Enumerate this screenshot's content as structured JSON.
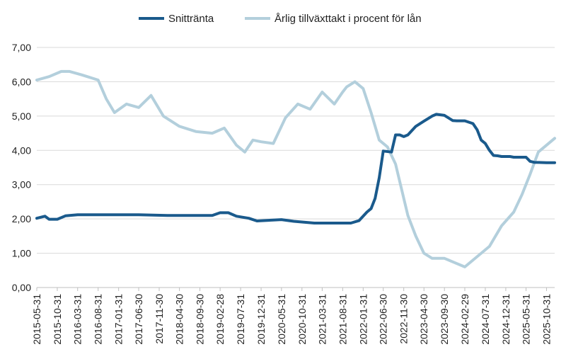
{
  "chart_data": {
    "type": "line",
    "title": "",
    "xlabel": "",
    "ylabel": "",
    "ylim": [
      0,
      7
    ],
    "y_ticks": [
      "0,00",
      "1,00",
      "2,00",
      "3,00",
      "4,00",
      "5,00",
      "6,00",
      "7,00"
    ],
    "y_tick_values": [
      0,
      1,
      2,
      3,
      4,
      5,
      6,
      7
    ],
    "x_range": [
      "2015-05-31",
      "2025-12-31"
    ],
    "x_ticks": [
      "2015-05-31",
      "2015-10-31",
      "2016-03-31",
      "2016-08-31",
      "2017-01-31",
      "2017-06-30",
      "2017-11-30",
      "2018-04-30",
      "2018-09-30",
      "2019-02-28",
      "2019-07-31",
      "2019-12-31",
      "2020-05-31",
      "2020-10-31",
      "2021-03-31",
      "2021-08-31",
      "2022-01-31",
      "2022-06-30",
      "2022-11-30",
      "2023-04-30",
      "2023-09-30",
      "2024-02-29",
      "2024-07-31",
      "2024-12-31",
      "2025-05-31",
      "2025-10-31"
    ],
    "grid": true,
    "legend_position": "top-center",
    "series": [
      {
        "name": "Snittränta",
        "color": "#1a5a8c",
        "x": [
          "2015-05-31",
          "2015-07-31",
          "2015-08-31",
          "2015-10-31",
          "2015-12-31",
          "2016-03-31",
          "2016-06-30",
          "2017-06-30",
          "2018-01-31",
          "2018-12-31",
          "2019-02-28",
          "2019-04-30",
          "2019-06-30",
          "2019-09-30",
          "2019-11-30",
          "2020-05-31",
          "2020-08-31",
          "2021-01-31",
          "2021-06-30",
          "2021-08-31",
          "2021-10-31",
          "2021-12-31",
          "2022-02-28",
          "2022-03-31",
          "2022-04-30",
          "2022-05-31",
          "2022-06-30",
          "2022-08-31",
          "2022-09-30",
          "2022-10-31",
          "2022-11-30",
          "2022-12-31",
          "2023-02-28",
          "2023-04-30",
          "2023-06-30",
          "2023-07-31",
          "2023-09-30",
          "2023-11-30",
          "2023-12-31",
          "2024-02-29",
          "2024-04-30",
          "2024-05-31",
          "2024-06-30",
          "2024-07-31",
          "2024-08-31",
          "2024-09-30",
          "2024-10-31",
          "2024-11-30",
          "2025-01-31",
          "2025-02-28",
          "2025-05-31",
          "2025-06-30",
          "2025-07-31",
          "2025-10-31",
          "2025-12-31"
        ],
        "values": [
          2.02,
          2.08,
          1.99,
          1.99,
          2.09,
          2.12,
          2.12,
          2.12,
          2.1,
          2.1,
          2.18,
          2.18,
          2.08,
          2.02,
          1.94,
          1.98,
          1.93,
          1.88,
          1.88,
          1.88,
          1.88,
          1.95,
          2.2,
          2.3,
          2.6,
          3.2,
          3.98,
          3.95,
          4.45,
          4.45,
          4.4,
          4.45,
          4.7,
          4.85,
          5.0,
          5.05,
          5.02,
          4.87,
          4.86,
          4.86,
          4.78,
          4.6,
          4.3,
          4.2,
          4.0,
          3.85,
          3.84,
          3.82,
          3.82,
          3.8,
          3.8,
          3.68,
          3.65,
          3.64,
          3.64
        ]
      },
      {
        "name": "Årlig tillväxttakt i procent för lån",
        "color": "#b3cfdc",
        "x": [
          "2015-05-31",
          "2015-08-31",
          "2015-11-30",
          "2016-01-31",
          "2016-04-30",
          "2016-08-31",
          "2016-10-31",
          "2016-12-31",
          "2017-03-31",
          "2017-06-30",
          "2017-09-30",
          "2017-12-31",
          "2018-04-30",
          "2018-08-31",
          "2018-12-31",
          "2019-03-31",
          "2019-06-30",
          "2019-08-31",
          "2019-10-31",
          "2019-12-31",
          "2020-03-31",
          "2020-06-30",
          "2020-09-30",
          "2020-12-31",
          "2021-03-31",
          "2021-06-30",
          "2021-08-31",
          "2021-09-30",
          "2021-11-30",
          "2022-01-31",
          "2022-03-31",
          "2022-05-31",
          "2022-07-31",
          "2022-09-30",
          "2022-12-31",
          "2023-02-28",
          "2023-04-30",
          "2023-06-30",
          "2023-09-30",
          "2023-11-30",
          "2024-02-29",
          "2024-05-31",
          "2024-08-31",
          "2024-11-30",
          "2025-02-28",
          "2025-04-30",
          "2025-06-30",
          "2025-08-31",
          "2025-12-31"
        ],
        "values": [
          6.05,
          6.15,
          6.3,
          6.3,
          6.2,
          6.05,
          5.5,
          5.1,
          5.35,
          5.25,
          5.6,
          5.0,
          4.7,
          4.55,
          4.5,
          4.65,
          4.15,
          3.95,
          4.3,
          4.25,
          4.2,
          4.95,
          5.35,
          5.2,
          5.7,
          5.35,
          5.7,
          5.85,
          6.0,
          5.8,
          5.1,
          4.3,
          4.1,
          3.6,
          2.1,
          1.5,
          1.0,
          0.85,
          0.85,
          0.75,
          0.6,
          0.9,
          1.2,
          1.8,
          2.2,
          2.7,
          3.3,
          3.95,
          4.35
        ]
      }
    ]
  }
}
